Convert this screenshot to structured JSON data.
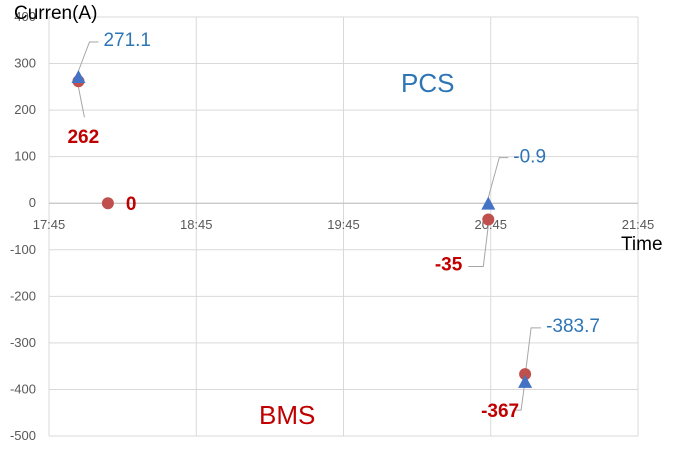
{
  "colors": {
    "pcs": "#2e75b6",
    "bms": "#c00000",
    "pcs_marker": "#4472c4",
    "bms_marker": "#c0504d",
    "grid": "#d9d9d9",
    "leader": "#a6a6a6"
  },
  "chart_data": {
    "type": "scatter",
    "title": "",
    "xlabel": "Time",
    "ylabel": "Curren(A)",
    "xlim": [
      "17:45",
      "21:45"
    ],
    "ylim": [
      -500,
      400
    ],
    "x_ticks": [
      "17:45",
      "18:45",
      "19:45",
      "20:45",
      "21:45"
    ],
    "y_ticks": [
      400,
      300,
      200,
      100,
      0,
      -100,
      -200,
      -300,
      -400,
      -500
    ],
    "grid": true,
    "legend": "none",
    "annotations": [
      {
        "text": "PCS",
        "color": "pcs"
      },
      {
        "text": "BMS",
        "color": "bms"
      }
    ],
    "series": [
      {
        "marker": "triangle",
        "color": "pcs_marker",
        "label_color": "pcs",
        "points": [
          {
            "x": "17:57",
            "y": 271.1,
            "label": "271.1"
          },
          {
            "x": "20:44",
            "y": -0.9,
            "label": "-0.9"
          },
          {
            "x": "20:59",
            "y": -383.7,
            "label": "-383.7"
          }
        ]
      },
      {
        "marker": "circle",
        "color": "bms_marker",
        "label_color": "bms",
        "points": [
          {
            "x": "17:57",
            "y": 262,
            "label": "262"
          },
          {
            "x": "18:09",
            "y": 0,
            "label": "0"
          },
          {
            "x": "20:44",
            "y": -35,
            "label": "-35"
          },
          {
            "x": "20:59",
            "y": -367,
            "label": "-367"
          }
        ]
      }
    ]
  }
}
